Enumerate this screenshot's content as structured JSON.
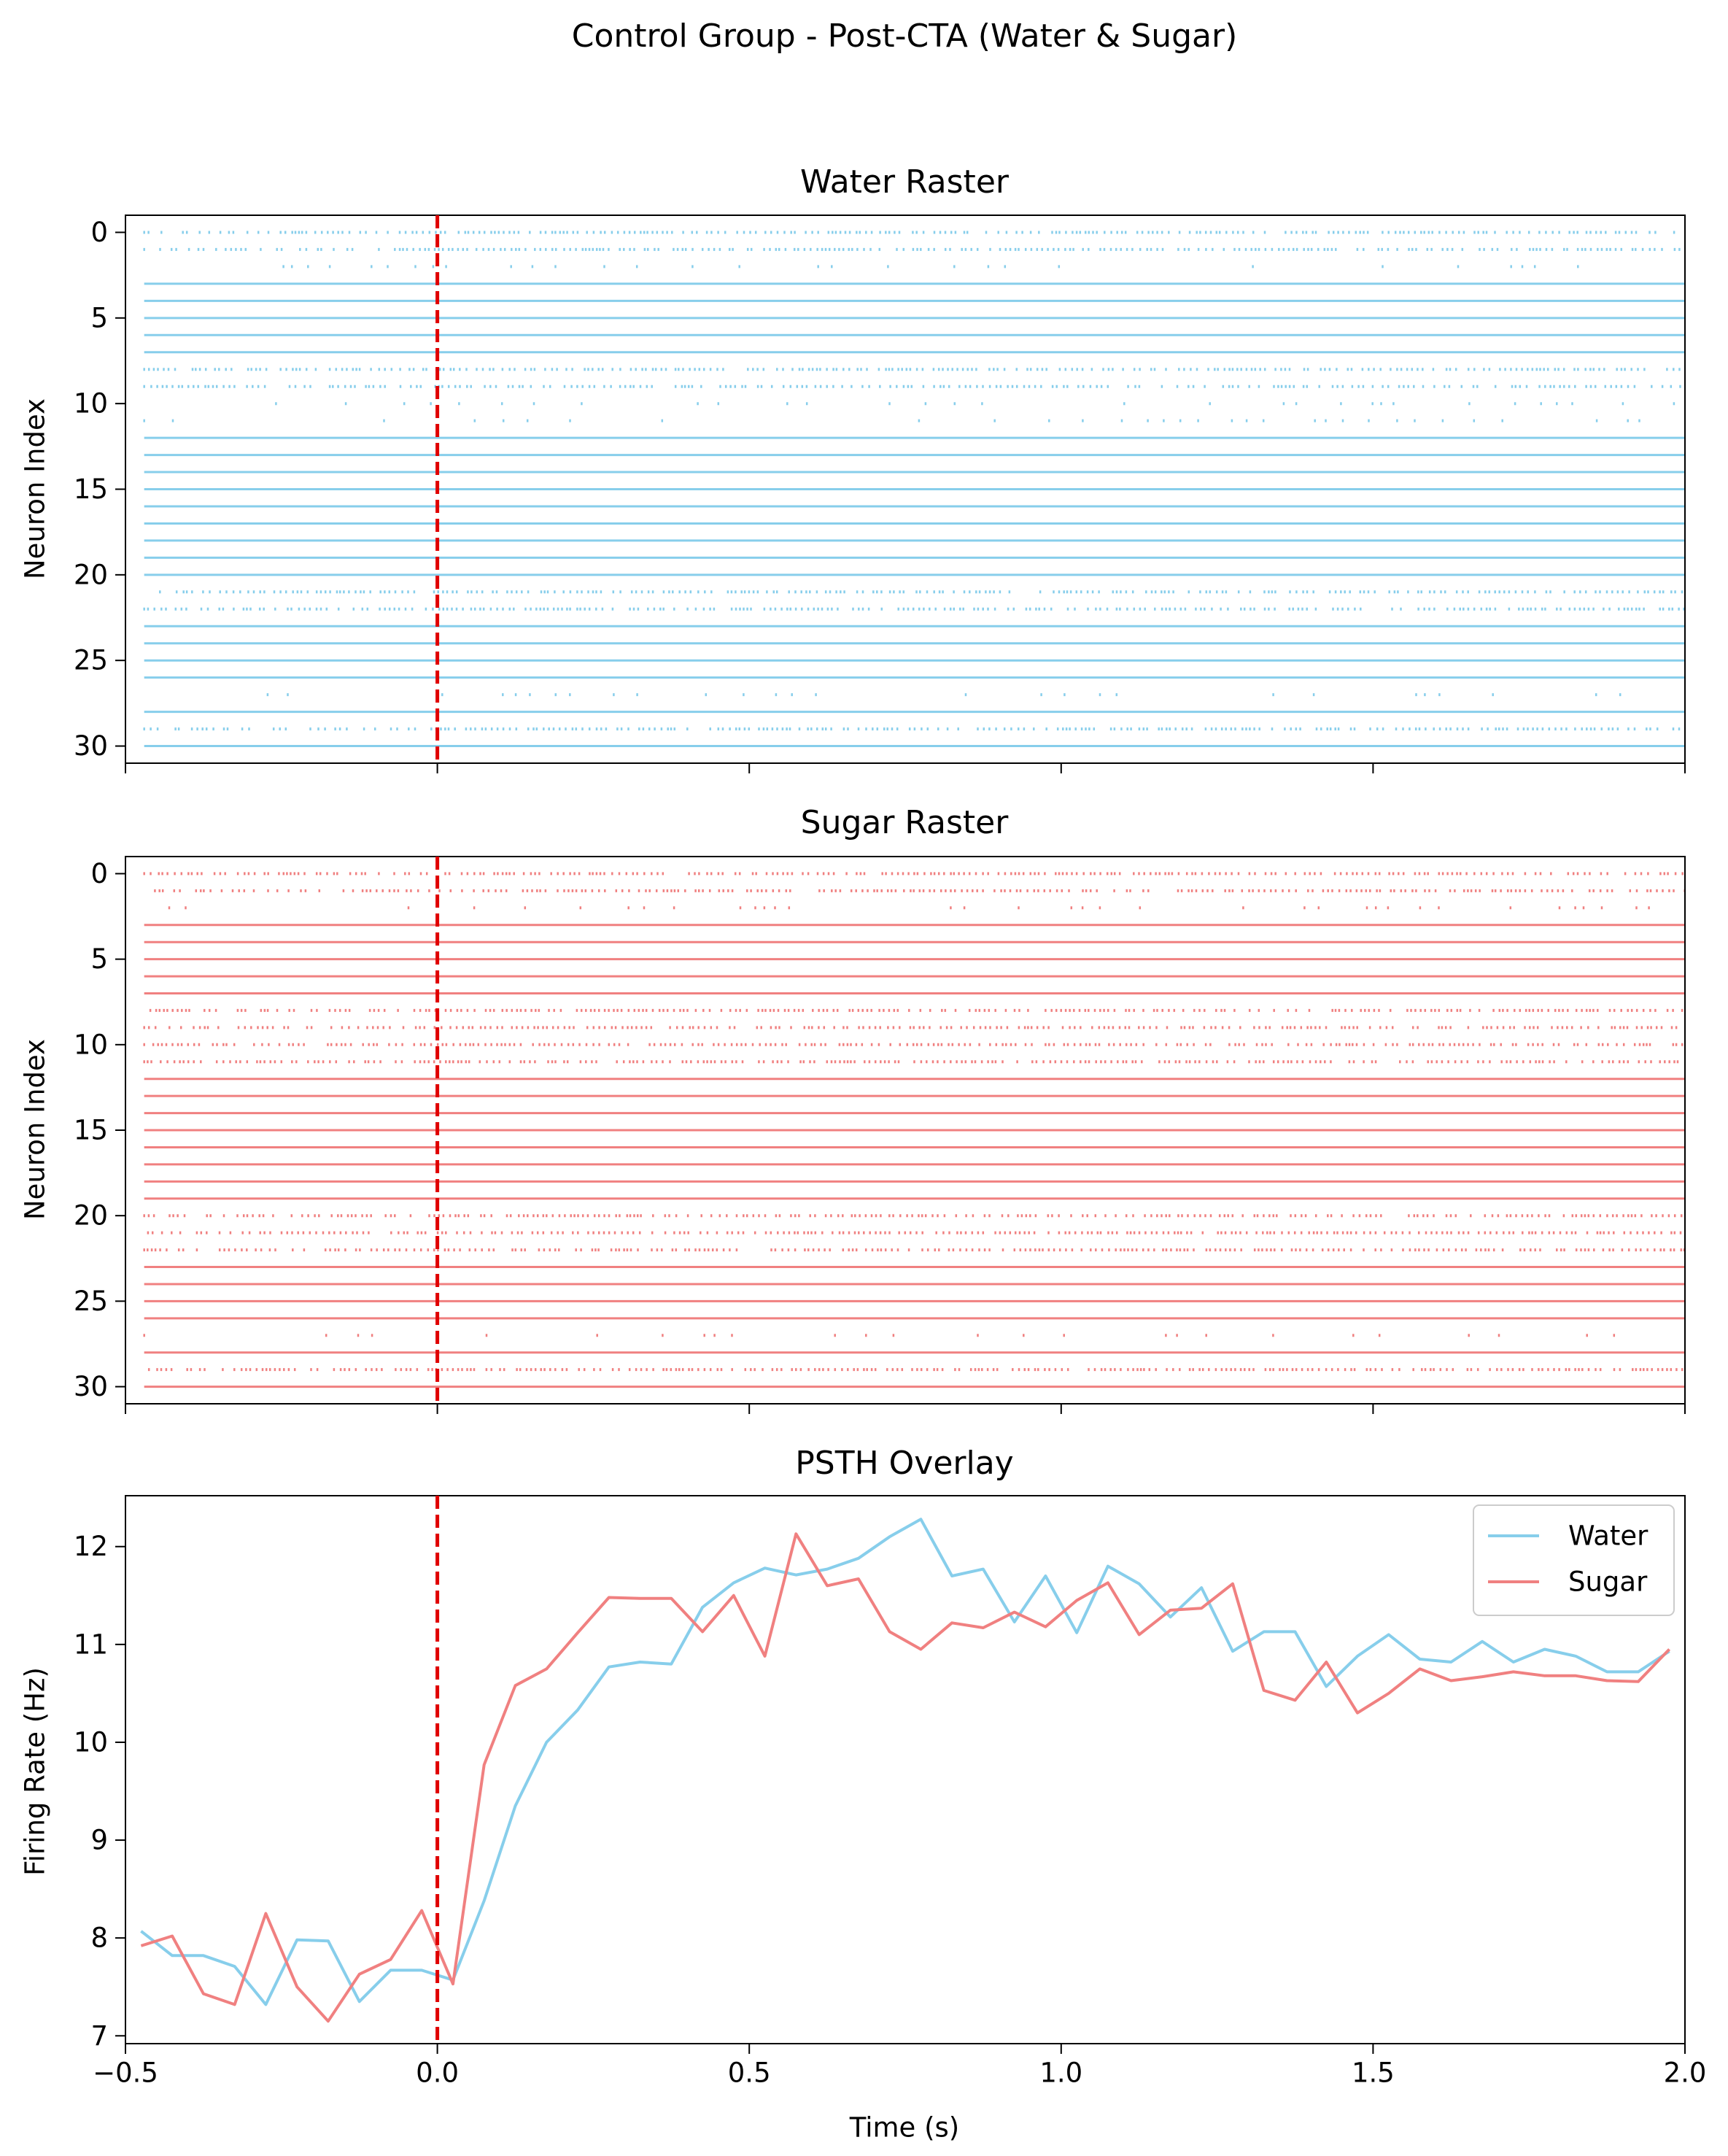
{
  "figure": {
    "suptitle": "Control Group - Post-CTA (Water & Sugar)"
  },
  "colors": {
    "water": "#87ceeb",
    "sugar": "#f08080",
    "stimulus_line": "#e00000",
    "axes": "#000000",
    "legend_border": "#cccccc"
  },
  "chart_data": [
    {
      "type": "raster",
      "title": "Water Raster",
      "ylabel": "Neuron Index",
      "xlim": [
        -0.5,
        2.0
      ],
      "ylim": [
        31,
        -1
      ],
      "y_ticks": [
        0,
        5,
        10,
        15,
        20,
        25,
        30
      ],
      "x_ticks_labeled": false,
      "stimulus_time": 0.0,
      "series_color": "water",
      "dense_rows": [
        3,
        4,
        5,
        6,
        7,
        12,
        13,
        14,
        15,
        16,
        17,
        18,
        19,
        20,
        23,
        24,
        25,
        26,
        28,
        30
      ],
      "medium_rows": [
        0,
        1,
        8,
        9,
        21,
        22,
        29
      ],
      "sparse_rows": [
        2,
        10,
        11,
        27
      ]
    },
    {
      "type": "raster",
      "title": "Sugar Raster",
      "ylabel": "Neuron Index",
      "xlim": [
        -0.5,
        2.0
      ],
      "ylim": [
        31,
        -1
      ],
      "y_ticks": [
        0,
        5,
        10,
        15,
        20,
        25,
        30
      ],
      "x_ticks_labeled": false,
      "stimulus_time": 0.0,
      "series_color": "sugar",
      "dense_rows": [
        3,
        4,
        5,
        6,
        7,
        12,
        13,
        14,
        15,
        16,
        17,
        18,
        19,
        23,
        24,
        25,
        26,
        28,
        30
      ],
      "medium_rows": [
        0,
        1,
        8,
        9,
        10,
        11,
        20,
        21,
        22,
        29
      ],
      "sparse_rows": [
        2,
        27
      ]
    },
    {
      "type": "line",
      "title": "PSTH Overlay",
      "xlabel": "Time (s)",
      "ylabel": "Firing Rate (Hz)",
      "xlim": [
        -0.5,
        2.0
      ],
      "ylim": [
        6.92,
        12.52
      ],
      "x_ticks": [
        -0.5,
        0.0,
        0.5,
        1.0,
        1.5,
        2.0
      ],
      "x_tick_labels": [
        "−0.5",
        "0.0",
        "0.5",
        "1.0",
        "1.5",
        "2.0"
      ],
      "y_ticks": [
        7,
        8,
        9,
        10,
        11,
        12
      ],
      "stimulus_time": 0.0,
      "legend": {
        "position": "top-right",
        "entries": [
          "Water",
          "Sugar"
        ]
      },
      "x": [
        -0.475,
        -0.425,
        -0.375,
        -0.325,
        -0.275,
        -0.225,
        -0.175,
        -0.125,
        -0.075,
        -0.025,
        0.025,
        0.075,
        0.125,
        0.175,
        0.225,
        0.275,
        0.325,
        0.375,
        0.425,
        0.475,
        0.525,
        0.575,
        0.625,
        0.675,
        0.725,
        0.775,
        0.825,
        0.875,
        0.925,
        0.975,
        1.025,
        1.075,
        1.125,
        1.175,
        1.225,
        1.275,
        1.325,
        1.375,
        1.425,
        1.475,
        1.525,
        1.575,
        1.625,
        1.675,
        1.725,
        1.775,
        1.825,
        1.875,
        1.925,
        1.975
      ],
      "series": [
        {
          "name": "Water",
          "color": "water",
          "values": [
            8.07,
            7.82,
            7.82,
            7.71,
            7.32,
            7.98,
            7.97,
            7.35,
            7.67,
            7.67,
            7.57,
            8.38,
            9.35,
            10.0,
            10.33,
            10.77,
            10.82,
            10.8,
            11.38,
            11.63,
            11.78,
            11.71,
            11.77,
            11.88,
            12.1,
            12.28,
            11.7,
            11.77,
            11.23,
            11.7,
            11.12,
            11.8,
            11.62,
            11.28,
            11.58,
            10.93,
            11.13,
            11.13,
            10.57,
            10.88,
            11.1,
            10.85,
            10.82,
            11.03,
            10.82,
            10.95,
            10.88,
            10.72,
            10.72,
            10.93
          ]
        },
        {
          "name": "Sugar",
          "color": "sugar",
          "values": [
            7.92,
            8.02,
            7.43,
            7.32,
            8.25,
            7.5,
            7.15,
            7.63,
            7.78,
            8.28,
            7.53,
            9.77,
            10.58,
            10.75,
            11.12,
            11.48,
            11.47,
            11.47,
            11.13,
            11.5,
            10.88,
            12.13,
            11.6,
            11.67,
            11.13,
            10.95,
            11.22,
            11.17,
            11.33,
            11.18,
            11.45,
            11.63,
            11.1,
            11.35,
            11.37,
            11.62,
            10.53,
            10.43,
            10.82,
            10.3,
            10.5,
            10.75,
            10.63,
            10.67,
            10.72,
            10.68,
            10.68,
            10.63,
            10.62,
            10.95
          ]
        }
      ]
    }
  ]
}
